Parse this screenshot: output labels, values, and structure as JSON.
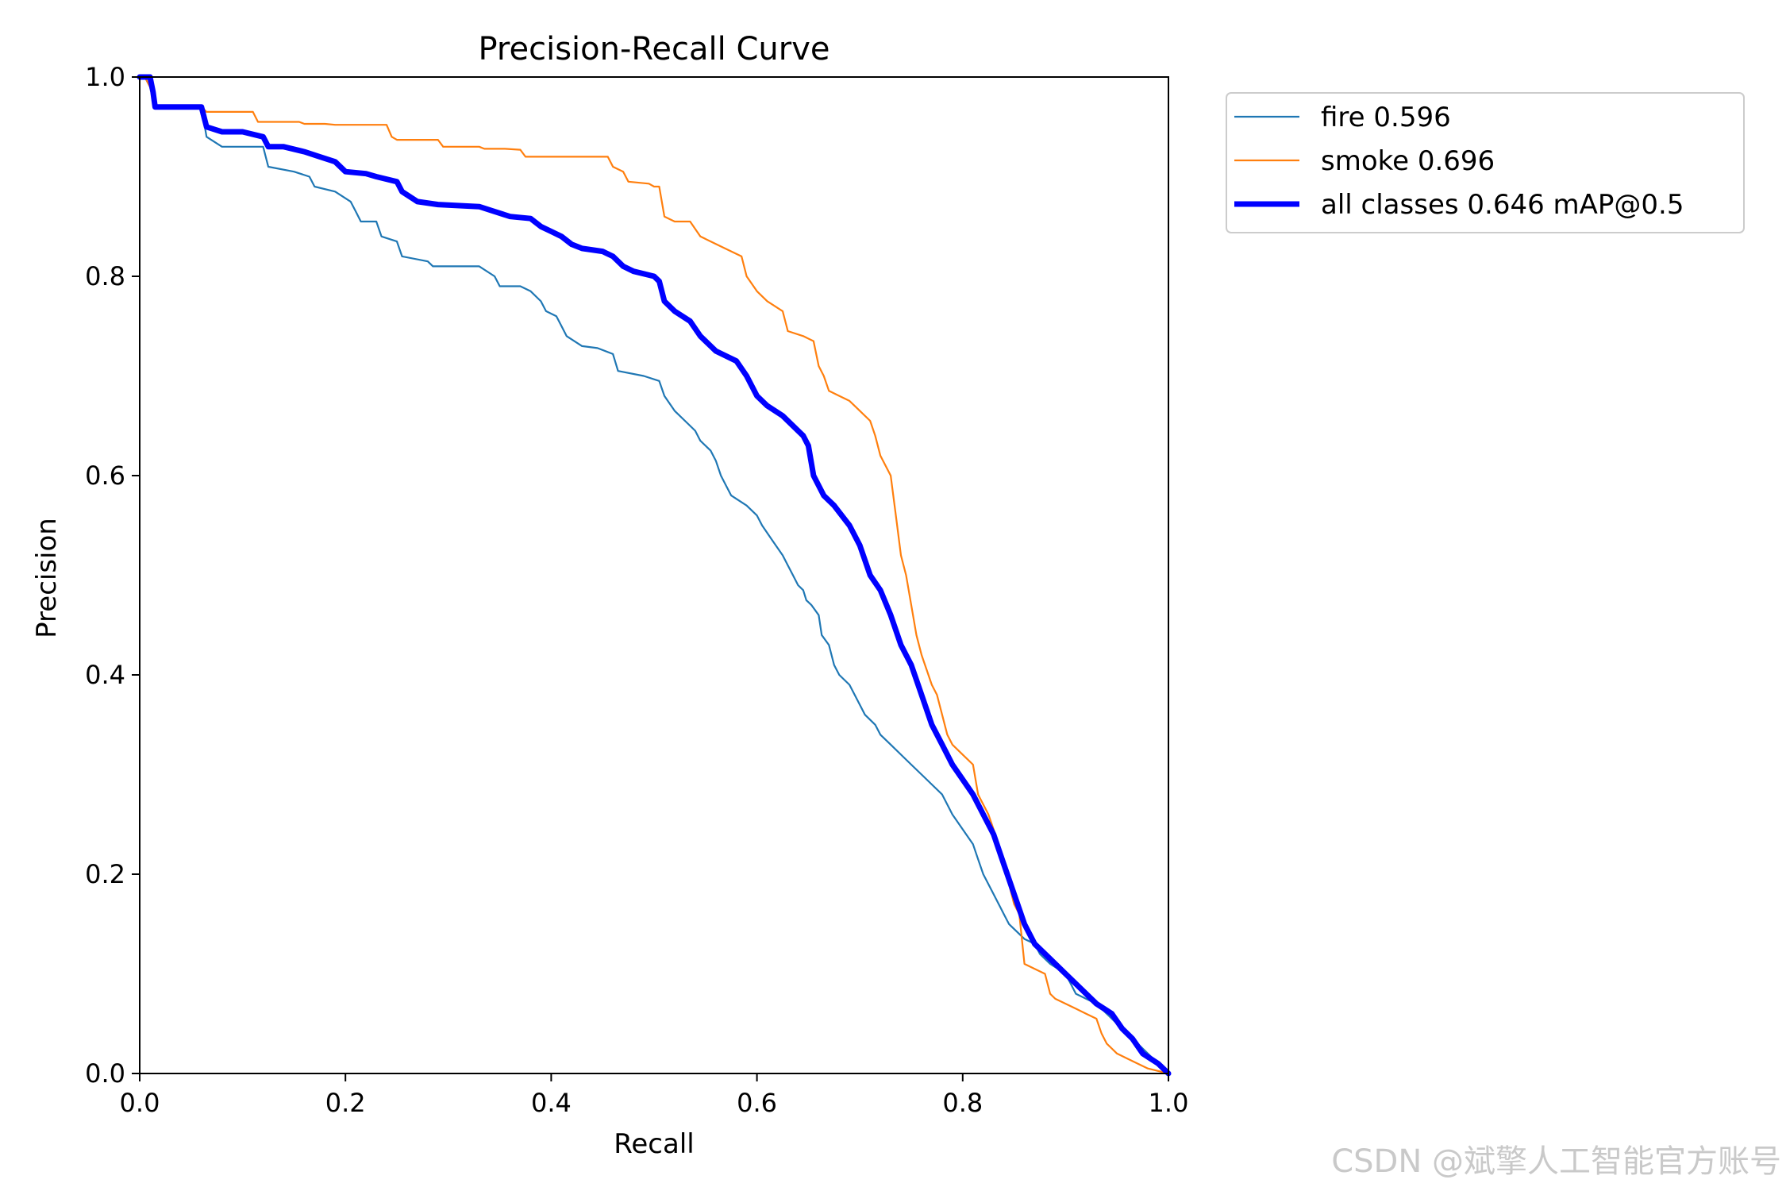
{
  "chart_data": {
    "type": "line",
    "title": "Precision-Recall Curve",
    "xlabel": "Recall",
    "ylabel": "Precision",
    "xlim": [
      0.0,
      1.0
    ],
    "ylim": [
      0.0,
      1.0
    ],
    "xticks": [
      "0.0",
      "0.2",
      "0.4",
      "0.6",
      "0.8",
      "1.0"
    ],
    "yticks": [
      "0.0",
      "0.2",
      "0.4",
      "0.6",
      "0.8",
      "1.0"
    ],
    "grid": false,
    "legend_position": "outside-top-right",
    "series": [
      {
        "name": "fire",
        "legend_label": "fire 0.596",
        "color": "#1f77b4",
        "weight": "thin",
        "points": [
          [
            0.0,
            1.0
          ],
          [
            0.005,
            1.0
          ],
          [
            0.01,
            0.99
          ],
          [
            0.015,
            0.97
          ],
          [
            0.06,
            0.97
          ],
          [
            0.065,
            0.94
          ],
          [
            0.08,
            0.93
          ],
          [
            0.12,
            0.93
          ],
          [
            0.125,
            0.91
          ],
          [
            0.15,
            0.905
          ],
          [
            0.165,
            0.9
          ],
          [
            0.17,
            0.89
          ],
          [
            0.19,
            0.885
          ],
          [
            0.205,
            0.875
          ],
          [
            0.21,
            0.865
          ],
          [
            0.215,
            0.855
          ],
          [
            0.23,
            0.855
          ],
          [
            0.235,
            0.84
          ],
          [
            0.25,
            0.835
          ],
          [
            0.255,
            0.82
          ],
          [
            0.28,
            0.815
          ],
          [
            0.285,
            0.81
          ],
          [
            0.33,
            0.81
          ],
          [
            0.345,
            0.8
          ],
          [
            0.35,
            0.79
          ],
          [
            0.37,
            0.79
          ],
          [
            0.38,
            0.785
          ],
          [
            0.39,
            0.775
          ],
          [
            0.395,
            0.765
          ],
          [
            0.405,
            0.76
          ],
          [
            0.41,
            0.75
          ],
          [
            0.415,
            0.74
          ],
          [
            0.43,
            0.73
          ],
          [
            0.445,
            0.728
          ],
          [
            0.46,
            0.722
          ],
          [
            0.465,
            0.705
          ],
          [
            0.49,
            0.7
          ],
          [
            0.505,
            0.695
          ],
          [
            0.51,
            0.68
          ],
          [
            0.52,
            0.665
          ],
          [
            0.53,
            0.655
          ],
          [
            0.54,
            0.645
          ],
          [
            0.545,
            0.635
          ],
          [
            0.555,
            0.625
          ],
          [
            0.56,
            0.615
          ],
          [
            0.565,
            0.6
          ],
          [
            0.57,
            0.59
          ],
          [
            0.575,
            0.58
          ],
          [
            0.59,
            0.57
          ],
          [
            0.6,
            0.56
          ],
          [
            0.605,
            0.55
          ],
          [
            0.615,
            0.535
          ],
          [
            0.625,
            0.52
          ],
          [
            0.63,
            0.51
          ],
          [
            0.635,
            0.5
          ],
          [
            0.64,
            0.49
          ],
          [
            0.645,
            0.485
          ],
          [
            0.648,
            0.475
          ],
          [
            0.653,
            0.47
          ],
          [
            0.66,
            0.46
          ],
          [
            0.663,
            0.44
          ],
          [
            0.67,
            0.43
          ],
          [
            0.675,
            0.41
          ],
          [
            0.68,
            0.4
          ],
          [
            0.69,
            0.39
          ],
          [
            0.7,
            0.37
          ],
          [
            0.705,
            0.36
          ],
          [
            0.715,
            0.35
          ],
          [
            0.72,
            0.34
          ],
          [
            0.73,
            0.33
          ],
          [
            0.74,
            0.32
          ],
          [
            0.75,
            0.31
          ],
          [
            0.76,
            0.3
          ],
          [
            0.77,
            0.29
          ],
          [
            0.78,
            0.28
          ],
          [
            0.79,
            0.26
          ],
          [
            0.8,
            0.245
          ],
          [
            0.81,
            0.23
          ],
          [
            0.815,
            0.215
          ],
          [
            0.82,
            0.2
          ],
          [
            0.83,
            0.18
          ],
          [
            0.835,
            0.17
          ],
          [
            0.84,
            0.16
          ],
          [
            0.845,
            0.15
          ],
          [
            0.855,
            0.14
          ],
          [
            0.86,
            0.135
          ],
          [
            0.87,
            0.13
          ],
          [
            0.875,
            0.12
          ],
          [
            0.885,
            0.11
          ],
          [
            0.9,
            0.1
          ],
          [
            0.905,
            0.09
          ],
          [
            0.91,
            0.08
          ],
          [
            0.93,
            0.07
          ],
          [
            0.94,
            0.06
          ],
          [
            0.95,
            0.05
          ],
          [
            0.96,
            0.04
          ],
          [
            0.97,
            0.03
          ],
          [
            0.98,
            0.02
          ],
          [
            0.99,
            0.01
          ],
          [
            1.0,
            0.0
          ]
        ]
      },
      {
        "name": "smoke",
        "legend_label": "smoke 0.696",
        "color": "#ff7f0e",
        "weight": "thin",
        "points": [
          [
            0.0,
            1.0
          ],
          [
            0.005,
            1.0
          ],
          [
            0.01,
            0.99
          ],
          [
            0.015,
            0.97
          ],
          [
            0.06,
            0.97
          ],
          [
            0.065,
            0.965
          ],
          [
            0.11,
            0.965
          ],
          [
            0.115,
            0.955
          ],
          [
            0.155,
            0.955
          ],
          [
            0.16,
            0.953
          ],
          [
            0.18,
            0.953
          ],
          [
            0.19,
            0.952
          ],
          [
            0.24,
            0.952
          ],
          [
            0.245,
            0.94
          ],
          [
            0.25,
            0.937
          ],
          [
            0.29,
            0.937
          ],
          [
            0.295,
            0.93
          ],
          [
            0.33,
            0.93
          ],
          [
            0.335,
            0.928
          ],
          [
            0.355,
            0.928
          ],
          [
            0.37,
            0.927
          ],
          [
            0.375,
            0.92
          ],
          [
            0.455,
            0.92
          ],
          [
            0.46,
            0.91
          ],
          [
            0.47,
            0.905
          ],
          [
            0.475,
            0.895
          ],
          [
            0.495,
            0.893
          ],
          [
            0.5,
            0.89
          ],
          [
            0.505,
            0.89
          ],
          [
            0.51,
            0.86
          ],
          [
            0.52,
            0.855
          ],
          [
            0.535,
            0.855
          ],
          [
            0.545,
            0.84
          ],
          [
            0.555,
            0.835
          ],
          [
            0.565,
            0.83
          ],
          [
            0.575,
            0.825
          ],
          [
            0.585,
            0.82
          ],
          [
            0.59,
            0.8
          ],
          [
            0.6,
            0.785
          ],
          [
            0.61,
            0.775
          ],
          [
            0.625,
            0.765
          ],
          [
            0.63,
            0.745
          ],
          [
            0.645,
            0.74
          ],
          [
            0.655,
            0.735
          ],
          [
            0.66,
            0.71
          ],
          [
            0.665,
            0.7
          ],
          [
            0.67,
            0.685
          ],
          [
            0.68,
            0.68
          ],
          [
            0.69,
            0.675
          ],
          [
            0.7,
            0.665
          ],
          [
            0.71,
            0.655
          ],
          [
            0.715,
            0.64
          ],
          [
            0.72,
            0.62
          ],
          [
            0.73,
            0.6
          ],
          [
            0.735,
            0.56
          ],
          [
            0.74,
            0.52
          ],
          [
            0.745,
            0.5
          ],
          [
            0.75,
            0.47
          ],
          [
            0.755,
            0.44
          ],
          [
            0.76,
            0.42
          ],
          [
            0.77,
            0.39
          ],
          [
            0.775,
            0.38
          ],
          [
            0.78,
            0.36
          ],
          [
            0.785,
            0.34
          ],
          [
            0.79,
            0.33
          ],
          [
            0.8,
            0.32
          ],
          [
            0.81,
            0.31
          ],
          [
            0.815,
            0.28
          ],
          [
            0.825,
            0.26
          ],
          [
            0.835,
            0.23
          ],
          [
            0.84,
            0.21
          ],
          [
            0.845,
            0.19
          ],
          [
            0.85,
            0.17
          ],
          [
            0.855,
            0.16
          ],
          [
            0.86,
            0.11
          ],
          [
            0.87,
            0.105
          ],
          [
            0.88,
            0.1
          ],
          [
            0.885,
            0.08
          ],
          [
            0.89,
            0.075
          ],
          [
            0.91,
            0.065
          ],
          [
            0.92,
            0.06
          ],
          [
            0.93,
            0.055
          ],
          [
            0.935,
            0.04
          ],
          [
            0.94,
            0.03
          ],
          [
            0.95,
            0.02
          ],
          [
            0.96,
            0.015
          ],
          [
            0.97,
            0.01
          ],
          [
            0.98,
            0.005
          ],
          [
            1.0,
            0.0
          ]
        ]
      },
      {
        "name": "all classes",
        "legend_label": "all classes 0.646 mAP@0.5",
        "color": "#0000ff",
        "weight": "thick",
        "points": [
          [
            0.0,
            1.0
          ],
          [
            0.01,
            1.0
          ],
          [
            0.013,
            0.985
          ],
          [
            0.015,
            0.97
          ],
          [
            0.06,
            0.97
          ],
          [
            0.065,
            0.95
          ],
          [
            0.08,
            0.945
          ],
          [
            0.1,
            0.945
          ],
          [
            0.12,
            0.94
          ],
          [
            0.125,
            0.93
          ],
          [
            0.14,
            0.93
          ],
          [
            0.16,
            0.925
          ],
          [
            0.175,
            0.92
          ],
          [
            0.19,
            0.915
          ],
          [
            0.2,
            0.905
          ],
          [
            0.22,
            0.903
          ],
          [
            0.23,
            0.9
          ],
          [
            0.25,
            0.895
          ],
          [
            0.255,
            0.885
          ],
          [
            0.27,
            0.875
          ],
          [
            0.29,
            0.872
          ],
          [
            0.33,
            0.87
          ],
          [
            0.345,
            0.865
          ],
          [
            0.36,
            0.86
          ],
          [
            0.38,
            0.858
          ],
          [
            0.39,
            0.85
          ],
          [
            0.4,
            0.845
          ],
          [
            0.41,
            0.84
          ],
          [
            0.42,
            0.832
          ],
          [
            0.43,
            0.828
          ],
          [
            0.45,
            0.825
          ],
          [
            0.46,
            0.82
          ],
          [
            0.47,
            0.81
          ],
          [
            0.48,
            0.805
          ],
          [
            0.5,
            0.8
          ],
          [
            0.505,
            0.795
          ],
          [
            0.51,
            0.775
          ],
          [
            0.52,
            0.765
          ],
          [
            0.535,
            0.755
          ],
          [
            0.545,
            0.74
          ],
          [
            0.56,
            0.725
          ],
          [
            0.58,
            0.715
          ],
          [
            0.59,
            0.7
          ],
          [
            0.6,
            0.68
          ],
          [
            0.61,
            0.67
          ],
          [
            0.625,
            0.66
          ],
          [
            0.635,
            0.65
          ],
          [
            0.645,
            0.64
          ],
          [
            0.65,
            0.63
          ],
          [
            0.655,
            0.6
          ],
          [
            0.665,
            0.58
          ],
          [
            0.675,
            0.57
          ],
          [
            0.69,
            0.55
          ],
          [
            0.7,
            0.53
          ],
          [
            0.71,
            0.5
          ],
          [
            0.72,
            0.485
          ],
          [
            0.73,
            0.46
          ],
          [
            0.74,
            0.43
          ],
          [
            0.75,
            0.41
          ],
          [
            0.76,
            0.38
          ],
          [
            0.77,
            0.35
          ],
          [
            0.78,
            0.33
          ],
          [
            0.79,
            0.31
          ],
          [
            0.8,
            0.295
          ],
          [
            0.81,
            0.28
          ],
          [
            0.82,
            0.26
          ],
          [
            0.83,
            0.24
          ],
          [
            0.84,
            0.21
          ],
          [
            0.85,
            0.18
          ],
          [
            0.86,
            0.15
          ],
          [
            0.87,
            0.13
          ],
          [
            0.885,
            0.115
          ],
          [
            0.9,
            0.1
          ],
          [
            0.915,
            0.085
          ],
          [
            0.93,
            0.07
          ],
          [
            0.945,
            0.06
          ],
          [
            0.955,
            0.045
          ],
          [
            0.965,
            0.035
          ],
          [
            0.975,
            0.02
          ],
          [
            0.99,
            0.01
          ],
          [
            1.0,
            0.0
          ]
        ]
      }
    ]
  },
  "watermark": "CSDN @斌擎人工智能官方账号"
}
